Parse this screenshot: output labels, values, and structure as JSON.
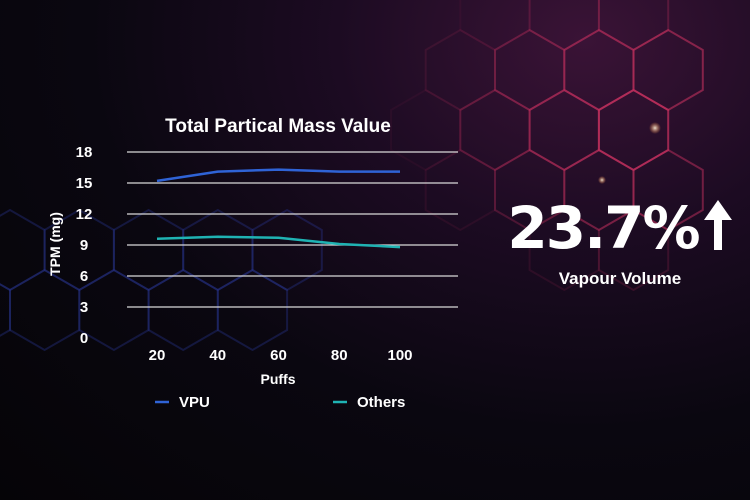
{
  "colors": {
    "background": "#07050b",
    "grid": "#d9d9d9",
    "vpu": "#2f63d6",
    "others": "#1fb3b3",
    "hex_glow": "#c2305e",
    "text": "#ffffff"
  },
  "highlight": {
    "value": "23.7%",
    "icon": "up-arrow-icon",
    "label": "Vapour Volume"
  },
  "chart_data": {
    "type": "line",
    "title": "Total Partical Mass Value",
    "xlabel": "Puffs",
    "ylabel": "TPM (mg)",
    "x": [
      20,
      40,
      60,
      80,
      100
    ],
    "x_tick_labels": [
      "20",
      "40",
      "60",
      "80",
      "100"
    ],
    "ylim": [
      0,
      18
    ],
    "y_ticks": [
      0,
      3,
      6,
      9,
      12,
      15,
      18
    ],
    "grid": true,
    "legend_position": "bottom",
    "series": [
      {
        "name": "VPU",
        "color": "#2f63d6",
        "values": [
          15.2,
          16.1,
          16.3,
          16.1,
          16.1
        ]
      },
      {
        "name": "Others",
        "color": "#1fb3b3",
        "values": [
          9.6,
          9.8,
          9.7,
          9.1,
          8.8
        ]
      }
    ]
  }
}
